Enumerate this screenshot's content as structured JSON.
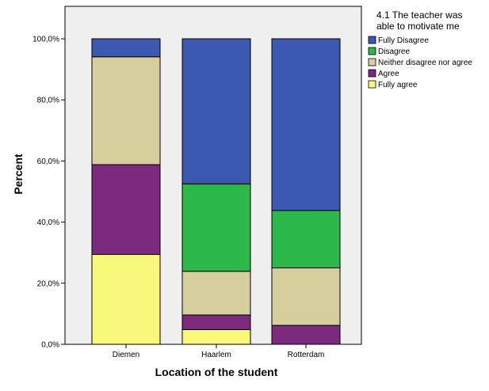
{
  "chart_data": {
    "type": "bar",
    "stacked": true,
    "categories": [
      "Diemen",
      "Haarlem",
      "Rotterdam"
    ],
    "series": [
      {
        "name": "Fully agree",
        "color": "#f8f87a",
        "values": [
          29.4,
          4.8,
          0
        ]
      },
      {
        "name": "Agree",
        "color": "#7b2a7e",
        "values": [
          29.4,
          4.8,
          6.2
        ]
      },
      {
        "name": "Neither disagree nor agree",
        "color": "#d4cf9c",
        "values": [
          35.3,
          14.3,
          18.8
        ]
      },
      {
        "name": "Disagree",
        "color": "#2db84a",
        "values": [
          0,
          28.6,
          18.8
        ]
      },
      {
        "name": "Fully Disagree",
        "color": "#3b59b0",
        "values": [
          5.9,
          47.5,
          56.2
        ]
      }
    ],
    "yticks": [
      "0,0%",
      "20,0%",
      "40,0%",
      "60,0%",
      "80,0%",
      "100,0%"
    ],
    "ylim": [
      0,
      100
    ],
    "xlabel": "Location of the student",
    "ylabel": "Percent",
    "legend": {
      "title_lines": [
        "4.1 The teacher was",
        "able to motivate me"
      ],
      "position": "right",
      "order": [
        "Fully Disagree",
        "Disagree",
        "Neither disagree nor agree",
        "Agree",
        "Fully agree"
      ]
    },
    "plot_background": "#efefef"
  }
}
